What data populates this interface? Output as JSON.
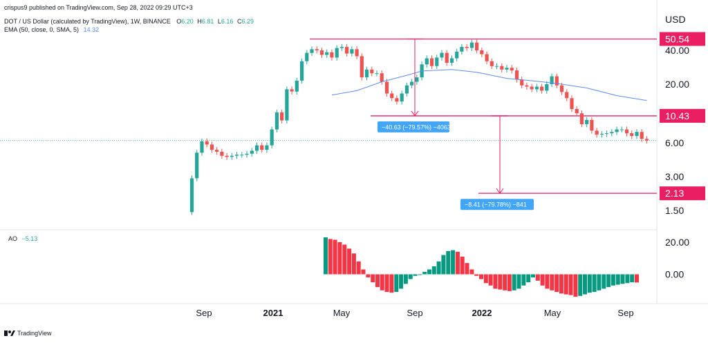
{
  "header": {
    "published": "crispus9 published on TradingView.com, Sep 28, 2022 09:29 UTC+3",
    "symbol_line": "DOT / US Dollar (calculated by TradingView), 1W, BINANCE",
    "ohlc": {
      "o_label": "O",
      "o": "6.20",
      "h_label": "H",
      "h": "6.81",
      "l_label": "L",
      "l": "6.16",
      "c_label": "C",
      "c": "6.29"
    },
    "ema_line": "EMA (50, close, 0, SMA, 5)",
    "ema_value": "14.32",
    "ao_label": "AO",
    "ao_value": "−5.13"
  },
  "footer": {
    "brand": "TradingView"
  },
  "colors": {
    "up": "#26a69a",
    "down": "#ef5350",
    "ema": "#5b8def",
    "level": "#e91e63",
    "measure": "#42a5f5",
    "hist_up": "#089981",
    "hist_down": "#f23645"
  },
  "chart_data": {
    "type": "candlestick",
    "currency": "USD",
    "price_scale": "log",
    "y_ticks": [
      "40.00",
      "20.00",
      "6.00",
      "3.00",
      "1.50"
    ],
    "ao_ticks": [
      "20.00",
      "0.00"
    ],
    "time_labels": [
      {
        "label": "Sep",
        "bold": false
      },
      {
        "label": "2021",
        "bold": true
      },
      {
        "label": "May",
        "bold": false
      },
      {
        "label": "Sep",
        "bold": false
      },
      {
        "label": "2022",
        "bold": true
      },
      {
        "label": "May",
        "bold": false
      },
      {
        "label": "Sep",
        "bold": false
      }
    ],
    "price_levels": [
      {
        "value": 50.54,
        "label": "50.54"
      },
      {
        "value": 10.43,
        "label": "10.43"
      },
      {
        "value": 2.13,
        "label": "2.13"
      }
    ],
    "measurements": [
      {
        "text": "−40.63 (−79.57%) −4063",
        "from": 50.54,
        "to": 10.43
      },
      {
        "text": "−8.41 (−79.78%) −841",
        "from": 10.43,
        "to": 2.13
      }
    ],
    "last_price": 6.29,
    "weekly_close": [
      2.9,
      4.9,
      6.2,
      5.8,
      5.2,
      5.0,
      4.6,
      4.5,
      4.6,
      4.7,
      4.7,
      4.8,
      5.1,
      5.7,
      5.2,
      5.7,
      7.9,
      11.2,
      9.5,
      18.0,
      17.2,
      21.5,
      32.0,
      38.0,
      41.0,
      40.0,
      36.5,
      38.5,
      34.5,
      42.0,
      43.0,
      37.5,
      41.0,
      35.5,
      23.0,
      27.0,
      25.0,
      25.0,
      21.0,
      16.5,
      15.0,
      14.0,
      16.5,
      19.5,
      21.0,
      23.0,
      30.0,
      34.0,
      29.0,
      34.5,
      38.0,
      31.0,
      34.0,
      39.0,
      43.0,
      42.0,
      47.0,
      40.0,
      37.0,
      32.0,
      29.0,
      29.0,
      27.0,
      28.0,
      26.5,
      22.0,
      19.5,
      19.0,
      18.0,
      19.0,
      17.5,
      20.0,
      23.5,
      19.5,
      17.0,
      15.0,
      12.0,
      11.0,
      8.8,
      9.6,
      7.7,
      7.1,
      7.2,
      7.3,
      7.5,
      7.9,
      7.9,
      7.3,
      6.9,
      7.5,
      6.5,
      6.29
    ],
    "ema50": [
      [
        28,
        16.0
      ],
      [
        33,
        17.5
      ],
      [
        38,
        21.0
      ],
      [
        43,
        24.0
      ],
      [
        46,
        26.2
      ],
      [
        52,
        27.0
      ],
      [
        57,
        25.5
      ],
      [
        63,
        22.5
      ],
      [
        70,
        21.0
      ],
      [
        74,
        20.0
      ],
      [
        79,
        18.5
      ],
      [
        85,
        15.8
      ],
      [
        91,
        14.32
      ]
    ],
    "ao_values": [
      23,
      22,
      21.5,
      20,
      18.5,
      16,
      13,
      8,
      3,
      -2,
      -5,
      -8,
      -10,
      -11,
      -11.5,
      -11,
      -9,
      -6,
      -3,
      -1,
      0,
      1.5,
      3,
      5,
      8,
      12,
      14.5,
      15,
      14,
      11,
      7,
      3,
      -1,
      -3,
      -5.5,
      -7,
      -9,
      -9.5,
      -10,
      -10.5,
      -10,
      -9,
      -7,
      -5,
      -2,
      -4,
      -7,
      -9,
      -10,
      -11,
      -12,
      -12.5,
      -13,
      -14,
      -13.5,
      -12.5,
      -11.5,
      -11,
      -10,
      -9,
      -8,
      -7,
      -6.5,
      -6,
      -5.5,
      -5,
      -5.13
    ]
  }
}
